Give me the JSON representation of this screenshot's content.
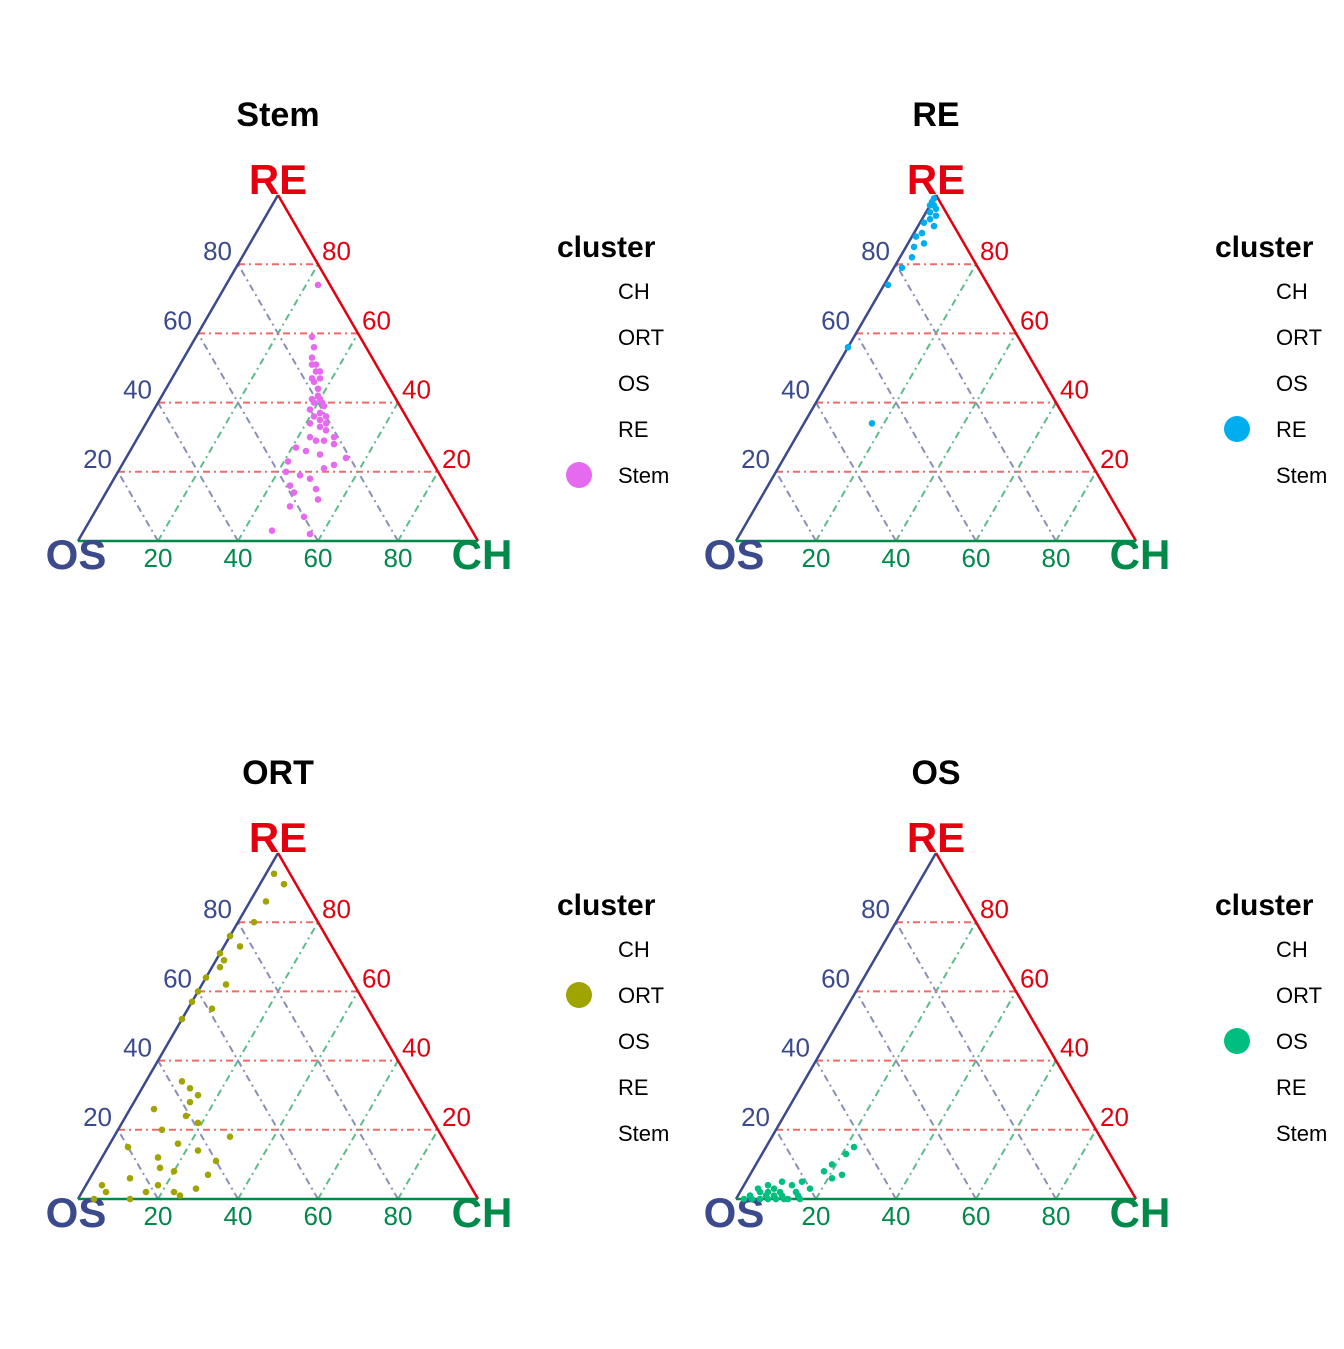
{
  "colors": {
    "os_axis": "#3B4A8C",
    "ch_axis": "#008A4A",
    "re_axis": "#E3000F",
    "grid_os": "#8A8FB8",
    "grid_ch": "#5DBB8A",
    "grid_re": "#F06A6A"
  },
  "legend": {
    "title": "cluster",
    "items": [
      "CH",
      "ORT",
      "OS",
      "RE",
      "Stem"
    ]
  },
  "chart_data": [
    {
      "type": "scatter",
      "subtype": "ternary",
      "title": "Stem",
      "axes": {
        "left": "OS",
        "right": "CH",
        "top": "RE"
      },
      "ticks": [
        20,
        40,
        60,
        80
      ],
      "grid": true,
      "legend_position": "right",
      "highlight_cluster": "Stem",
      "color": "#E56AF0",
      "points": [
        [
          0.74,
          0.23,
          0.03
        ],
        [
          0.59,
          0.29,
          0.12
        ],
        [
          0.56,
          0.31,
          0.13
        ],
        [
          0.53,
          0.32,
          0.15
        ],
        [
          0.51,
          0.33,
          0.16
        ],
        [
          0.51,
          0.34,
          0.15
        ],
        [
          0.49,
          0.35,
          0.16
        ],
        [
          0.49,
          0.36,
          0.15
        ],
        [
          0.47,
          0.37,
          0.16
        ],
        [
          0.47,
          0.35,
          0.18
        ],
        [
          0.46,
          0.36,
          0.18
        ],
        [
          0.44,
          0.38,
          0.18
        ],
        [
          0.42,
          0.39,
          0.19
        ],
        [
          0.41,
          0.4,
          0.19
        ],
        [
          0.41,
          0.38,
          0.21
        ],
        [
          0.4,
          0.41,
          0.19
        ],
        [
          0.4,
          0.39,
          0.21
        ],
        [
          0.39,
          0.42,
          0.19
        ],
        [
          0.38,
          0.39,
          0.23
        ],
        [
          0.37,
          0.42,
          0.21
        ],
        [
          0.36,
          0.44,
          0.2
        ],
        [
          0.36,
          0.41,
          0.23
        ],
        [
          0.35,
          0.43,
          0.22
        ],
        [
          0.34,
          0.45,
          0.21
        ],
        [
          0.34,
          0.41,
          0.25
        ],
        [
          0.33,
          0.44,
          0.23
        ],
        [
          0.32,
          0.46,
          0.22
        ],
        [
          0.3,
          0.49,
          0.21
        ],
        [
          0.3,
          0.43,
          0.27
        ],
        [
          0.29,
          0.47,
          0.24
        ],
        [
          0.29,
          0.45,
          0.26
        ],
        [
          0.28,
          0.5,
          0.22
        ],
        [
          0.27,
          0.41,
          0.32
        ],
        [
          0.26,
          0.44,
          0.3
        ],
        [
          0.25,
          0.48,
          0.27
        ],
        [
          0.24,
          0.55,
          0.21
        ],
        [
          0.23,
          0.41,
          0.36
        ],
        [
          0.22,
          0.53,
          0.25
        ],
        [
          0.21,
          0.51,
          0.28
        ],
        [
          0.2,
          0.42,
          0.38
        ],
        [
          0.19,
          0.46,
          0.35
        ],
        [
          0.18,
          0.49,
          0.33
        ],
        [
          0.16,
          0.45,
          0.39
        ],
        [
          0.15,
          0.52,
          0.33
        ],
        [
          0.14,
          0.47,
          0.39
        ],
        [
          0.12,
          0.54,
          0.34
        ],
        [
          0.1,
          0.48,
          0.42
        ],
        [
          0.07,
          0.53,
          0.4
        ],
        [
          0.03,
          0.47,
          0.5
        ],
        [
          0.02,
          0.57,
          0.41
        ]
      ]
    },
    {
      "type": "scatter",
      "subtype": "ternary",
      "title": "RE",
      "axes": {
        "left": "OS",
        "right": "CH",
        "top": "RE"
      },
      "ticks": [
        20,
        40,
        60,
        80
      ],
      "grid": true,
      "legend_position": "right",
      "highlight_cluster": "RE",
      "color": "#00AEEF",
      "points": [
        [
          0.99,
          0.0,
          0.01
        ],
        [
          0.98,
          0.0,
          0.02
        ],
        [
          0.97,
          0.01,
          0.02
        ],
        [
          0.97,
          0.0,
          0.03
        ],
        [
          0.96,
          0.02,
          0.02
        ],
        [
          0.95,
          0.01,
          0.04
        ],
        [
          0.94,
          0.03,
          0.03
        ],
        [
          0.93,
          0.02,
          0.05
        ],
        [
          0.92,
          0.01,
          0.07
        ],
        [
          0.91,
          0.04,
          0.05
        ],
        [
          0.89,
          0.02,
          0.09
        ],
        [
          0.88,
          0.01,
          0.11
        ],
        [
          0.86,
          0.04,
          0.1
        ],
        [
          0.85,
          0.02,
          0.13
        ],
        [
          0.82,
          0.03,
          0.15
        ],
        [
          0.79,
          0.02,
          0.19
        ],
        [
          0.74,
          0.01,
          0.25
        ],
        [
          0.56,
          0.0,
          0.44
        ],
        [
          0.34,
          0.17,
          0.49
        ]
      ]
    },
    {
      "type": "scatter",
      "subtype": "ternary",
      "title": "ORT",
      "axes": {
        "left": "OS",
        "right": "CH",
        "top": "RE"
      },
      "ticks": [
        20,
        40,
        60,
        80
      ],
      "grid": true,
      "legend_position": "right",
      "highlight_cluster": "ORT",
      "color": "#9FA400",
      "points": [
        [
          0.94,
          0.02,
          0.04
        ],
        [
          0.91,
          0.06,
          0.03
        ],
        [
          0.86,
          0.04,
          0.1
        ],
        [
          0.8,
          0.04,
          0.16
        ],
        [
          0.76,
          0.0,
          0.24
        ],
        [
          0.73,
          0.04,
          0.23
        ],
        [
          0.71,
          0.0,
          0.29
        ],
        [
          0.69,
          0.02,
          0.29
        ],
        [
          0.67,
          0.02,
          0.31
        ],
        [
          0.64,
          0.0,
          0.36
        ],
        [
          0.62,
          0.06,
          0.32
        ],
        [
          0.6,
          0.0,
          0.4
        ],
        [
          0.57,
          0.0,
          0.43
        ],
        [
          0.55,
          0.06,
          0.39
        ],
        [
          0.52,
          0.0,
          0.48
        ],
        [
          0.34,
          0.09,
          0.57
        ],
        [
          0.32,
          0.12,
          0.56
        ],
        [
          0.3,
          0.15,
          0.55
        ],
        [
          0.28,
          0.14,
          0.58
        ],
        [
          0.26,
          0.06,
          0.68
        ],
        [
          0.24,
          0.15,
          0.61
        ],
        [
          0.22,
          0.19,
          0.59
        ],
        [
          0.2,
          0.11,
          0.69
        ],
        [
          0.18,
          0.29,
          0.53
        ],
        [
          0.16,
          0.17,
          0.67
        ],
        [
          0.15,
          0.05,
          0.8
        ],
        [
          0.14,
          0.23,
          0.63
        ],
        [
          0.12,
          0.14,
          0.74
        ],
        [
          0.11,
          0.29,
          0.6
        ],
        [
          0.09,
          0.16,
          0.75
        ],
        [
          0.08,
          0.2,
          0.72
        ],
        [
          0.07,
          0.29,
          0.64
        ],
        [
          0.06,
          0.1,
          0.84
        ],
        [
          0.04,
          0.18,
          0.78
        ],
        [
          0.03,
          0.28,
          0.69
        ],
        [
          0.02,
          0.16,
          0.82
        ],
        [
          0.01,
          0.25,
          0.74
        ],
        [
          0.04,
          0.04,
          0.92
        ],
        [
          0.02,
          0.06,
          0.92
        ],
        [
          0.0,
          0.04,
          0.96
        ],
        [
          0.0,
          0.13,
          0.87
        ],
        [
          0.02,
          0.23,
          0.75
        ]
      ]
    },
    {
      "type": "scatter",
      "subtype": "ternary",
      "title": "OS",
      "axes": {
        "left": "OS",
        "right": "CH",
        "top": "RE"
      },
      "ticks": [
        20,
        40,
        60,
        80
      ],
      "grid": true,
      "legend_position": "right",
      "highlight_cluster": "OS",
      "color": "#00BE7F",
      "points": [
        [
          0.15,
          0.22,
          0.63
        ],
        [
          0.13,
          0.21,
          0.66
        ],
        [
          0.1,
          0.19,
          0.71
        ],
        [
          0.08,
          0.18,
          0.74
        ],
        [
          0.07,
          0.23,
          0.7
        ],
        [
          0.06,
          0.21,
          0.73
        ],
        [
          0.05,
          0.14,
          0.81
        ],
        [
          0.05,
          0.09,
          0.86
        ],
        [
          0.04,
          0.06,
          0.9
        ],
        [
          0.04,
          0.12,
          0.84
        ],
        [
          0.03,
          0.17,
          0.8
        ],
        [
          0.03,
          0.08,
          0.89
        ],
        [
          0.02,
          0.1,
          0.88
        ],
        [
          0.02,
          0.14,
          0.84
        ],
        [
          0.02,
          0.05,
          0.93
        ],
        [
          0.01,
          0.03,
          0.96
        ],
        [
          0.01,
          0.07,
          0.92
        ],
        [
          0.01,
          0.11,
          0.88
        ],
        [
          0.01,
          0.15,
          0.84
        ],
        [
          0.0,
          0.02,
          0.98
        ],
        [
          0.0,
          0.04,
          0.96
        ],
        [
          0.0,
          0.06,
          0.94
        ],
        [
          0.0,
          0.08,
          0.92
        ],
        [
          0.0,
          0.1,
          0.9
        ],
        [
          0.0,
          0.12,
          0.88
        ],
        [
          0.0,
          0.16,
          0.84
        ],
        [
          0.03,
          0.04,
          0.93
        ],
        [
          0.02,
          0.07,
          0.91
        ],
        [
          0.01,
          0.09,
          0.9
        ],
        [
          0.0,
          0.13,
          0.87
        ]
      ]
    }
  ]
}
